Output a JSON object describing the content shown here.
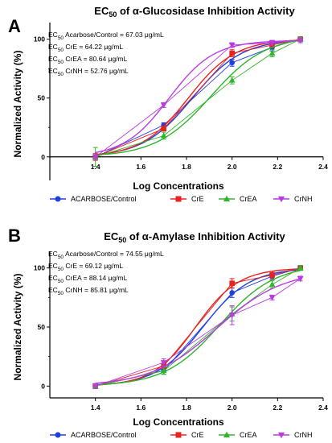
{
  "chart_data": [
    {
      "type": "line",
      "panel_label": "A",
      "title_main": "EC",
      "title_sub": "50",
      "title_rest": " of α-Glucosidase Inhibition Activity",
      "xlabel": "Log Concentrations",
      "ylabel": "Normalized Activity (%)",
      "xlim": [
        1.2,
        2.4
      ],
      "ylim": [
        -20,
        110
      ],
      "xticks": [
        1.4,
        1.6,
        1.8,
        2.0,
        2.2,
        2.4
      ],
      "xtick_labels": [
        "1.4",
        "1.6",
        "1.8",
        "2.0",
        "2.2",
        "2.4"
      ],
      "yticks": [
        0,
        50,
        100
      ],
      "ytick_labels": [
        "0",
        "50",
        "100"
      ],
      "annotations": [
        {
          "pre": "EC",
          "sub": "50",
          "post": " Acarbose/Control = 67.03 μg/mL"
        },
        {
          "pre": "EC",
          "sub": "50",
          "post": " CrE = 64.22 μg/mL"
        },
        {
          "pre": "EC",
          "sub": "50",
          "post": " CrEA = 80.64 μg/mL"
        },
        {
          "pre": "EC",
          "sub": "50",
          "post": " CrNH = 52.76 μg/mL"
        }
      ],
      "x": [
        1.4,
        1.7,
        2.0,
        2.176,
        2.3
      ],
      "series": [
        {
          "name": "ACARBOSE/Control",
          "color": "#1f3fe0",
          "marker": "circle",
          "values": [
            0,
            27,
            80,
            93,
            100
          ],
          "errors": [
            2,
            2,
            3,
            3,
            2
          ],
          "fit": {
            "top": 100,
            "ec50_log": 1.826,
            "hill": 4.0
          }
        },
        {
          "name": "CrE",
          "color": "#e8231f",
          "marker": "square",
          "values": [
            0,
            24,
            88,
            95,
            100
          ],
          "errors": [
            3,
            2,
            3,
            2,
            2
          ],
          "fit": {
            "top": 100,
            "ec50_log": 1.808,
            "hill": 4.2
          }
        },
        {
          "name": "CrEA",
          "color": "#2fb52a",
          "marker": "triangle-up",
          "values": [
            0,
            18,
            65,
            88,
            100
          ],
          "errors": [
            8,
            3,
            3,
            3,
            2
          ],
          "fit": {
            "top": 103,
            "ec50_log": 1.907,
            "hill": 3.6
          }
        },
        {
          "name": "CrNH",
          "color": "#b93be0",
          "marker": "triangle-down",
          "values": [
            0,
            44,
            95,
            97,
            99
          ],
          "errors": [
            2,
            2,
            2,
            2,
            2
          ],
          "fit": {
            "top": 99,
            "ec50_log": 1.722,
            "hill": 4.4
          }
        }
      ],
      "legend_placement": "bottom"
    },
    {
      "type": "line",
      "panel_label": "B",
      "title_main": "EC",
      "title_sub": "50",
      "title_rest": " of α-Amylase Inhibition Activity",
      "xlabel": "Log Concentrations",
      "ylabel": "Normalized Activity (%)",
      "xlim": [
        1.2,
        2.4
      ],
      "ylim": [
        -10,
        110
      ],
      "xticks": [
        1.4,
        1.6,
        1.8,
        2.0,
        2.2,
        2.4
      ],
      "xtick_labels": [
        "1.4",
        "1.6",
        "1.8",
        "2.0",
        "2.2",
        "2.4"
      ],
      "yticks": [
        0,
        50,
        100
      ],
      "ytick_labels": [
        "0",
        "50",
        "100"
      ],
      "annotations": [
        {
          "pre": "EC",
          "sub": "50",
          "post": " Acarbose/Control = 74.55 μg/mL"
        },
        {
          "pre": "EC",
          "sub": "50",
          "post": " CrE = 69.12 μg/mL"
        },
        {
          "pre": "EC",
          "sub": "50",
          "post": " CrEA = 88.14 μg/mL"
        },
        {
          "pre": "EC",
          "sub": "50",
          "post": " CrNH = 85.81 μg/mL"
        }
      ],
      "x": [
        1.4,
        1.7,
        2.0,
        2.176,
        2.3
      ],
      "series": [
        {
          "name": "ACARBOSE/Control",
          "color": "#1f3fe0",
          "marker": "circle",
          "values": [
            0,
            13,
            79,
            93,
            100
          ],
          "errors": [
            2,
            3,
            4,
            3,
            2
          ],
          "fit": {
            "top": 100,
            "ec50_log": 1.872,
            "hill": 4.2
          }
        },
        {
          "name": "CrE",
          "color": "#e8231f",
          "marker": "square",
          "values": [
            0,
            17,
            87,
            94,
            100
          ],
          "errors": [
            2,
            2,
            4,
            3,
            2
          ],
          "fit": {
            "top": 100,
            "ec50_log": 1.84,
            "hill": 4.6
          }
        },
        {
          "name": "CrEA",
          "color": "#2fb52a",
          "marker": "triangle-up",
          "values": [
            0,
            13,
            61,
            86,
            100
          ],
          "errors": [
            2,
            3,
            6,
            3,
            2
          ],
          "fit": {
            "top": 103,
            "ec50_log": 1.945,
            "hill": 3.6
          }
        },
        {
          "name": "CrNH",
          "color": "#b93be0",
          "marker": "triangle-down",
          "values": [
            0,
            20,
            60,
            75,
            91
          ],
          "errors": [
            2,
            3,
            8,
            2,
            2
          ],
          "fit": {
            "top": 98,
            "ec50_log": 1.934,
            "hill": 3.0
          }
        }
      ],
      "legend_placement": "bottom"
    }
  ]
}
